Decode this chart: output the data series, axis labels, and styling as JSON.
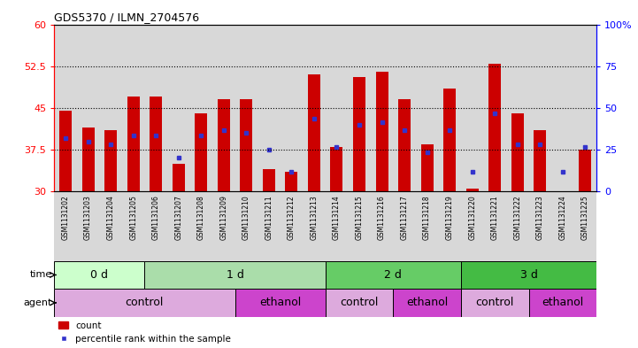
{
  "title": "GDS5370 / ILMN_2704576",
  "samples": [
    "GSM1131202",
    "GSM1131203",
    "GSM1131204",
    "GSM1131205",
    "GSM1131206",
    "GSM1131207",
    "GSM1131208",
    "GSM1131209",
    "GSM1131210",
    "GSM1131211",
    "GSM1131212",
    "GSM1131213",
    "GSM1131214",
    "GSM1131215",
    "GSM1131216",
    "GSM1131217",
    "GSM1131218",
    "GSM1131219",
    "GSM1131220",
    "GSM1131221",
    "GSM1131222",
    "GSM1131223",
    "GSM1131224",
    "GSM1131225"
  ],
  "bar_tops": [
    44.5,
    41.5,
    41.0,
    47.0,
    47.0,
    35.0,
    44.0,
    46.5,
    46.5,
    34.0,
    33.5,
    51.0,
    38.0,
    50.5,
    51.5,
    46.5,
    38.5,
    48.5,
    30.5,
    53.0,
    44.0,
    41.0,
    30.0,
    37.5
  ],
  "blue_vals": [
    39.5,
    39.0,
    38.5,
    40.0,
    40.0,
    36.0,
    40.0,
    41.0,
    40.5,
    37.5,
    33.5,
    43.0,
    38.0,
    42.0,
    42.5,
    41.0,
    37.0,
    41.0,
    33.5,
    44.0,
    38.5,
    38.5,
    33.5,
    38.0
  ],
  "y_min": 30,
  "y_max": 60,
  "y_ticks_left": [
    30,
    37.5,
    45,
    52.5,
    60
  ],
  "y_ticks_right": [
    0,
    25,
    50,
    75,
    100
  ],
  "dotted_lines": [
    37.5,
    45.0,
    52.5
  ],
  "bar_color": "#cc0000",
  "blue_color": "#3333cc",
  "col_bg_color": "#d8d8d8",
  "time_groups": [
    {
      "label": "0 d",
      "start": 0,
      "end": 4,
      "color": "#ccffcc"
    },
    {
      "label": "1 d",
      "start": 4,
      "end": 12,
      "color": "#aaddaa"
    },
    {
      "label": "2 d",
      "start": 12,
      "end": 18,
      "color": "#66cc66"
    },
    {
      "label": "3 d",
      "start": 18,
      "end": 24,
      "color": "#44bb44"
    }
  ],
  "agent_groups": [
    {
      "label": "control",
      "start": 0,
      "end": 8,
      "color": "#ddaadd"
    },
    {
      "label": "ethanol",
      "start": 8,
      "end": 12,
      "color": "#cc44cc"
    },
    {
      "label": "control",
      "start": 12,
      "end": 15,
      "color": "#ddaadd"
    },
    {
      "label": "ethanol",
      "start": 15,
      "end": 18,
      "color": "#cc44cc"
    },
    {
      "label": "control",
      "start": 18,
      "end": 21,
      "color": "#ddaadd"
    },
    {
      "label": "ethanol",
      "start": 21,
      "end": 24,
      "color": "#cc44cc"
    }
  ],
  "legend_count": "count",
  "legend_pct": "percentile rank within the sample",
  "time_label": "time",
  "agent_label": "agent"
}
